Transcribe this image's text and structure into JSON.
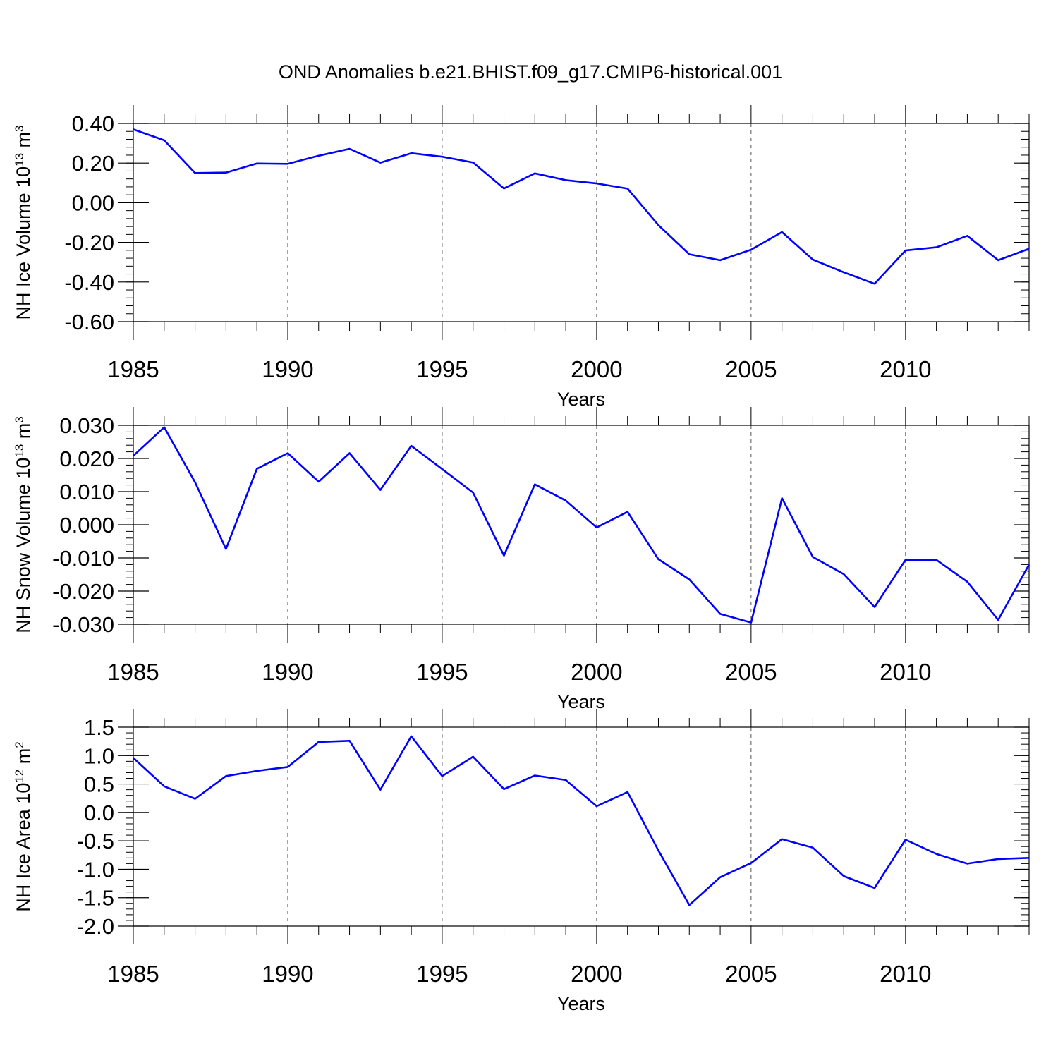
{
  "figure": {
    "title": "OND Anomalies b.e21.BHIST.f09_g17.CMIP6-historical.001",
    "line_color": "#0000ff",
    "axis_color": "#000000",
    "grid_color": "#555555"
  },
  "chart_data": [
    {
      "type": "line",
      "xlabel": "Years",
      "ylabel": {
        "prefix": "NH Ice Volume 10",
        "exponent": "13",
        "unit": " m",
        "unit_exponent": "3"
      },
      "xlim": [
        1985,
        2014
      ],
      "ylim": [
        -0.6,
        0.4
      ],
      "xticks": [
        1985,
        1990,
        1995,
        2000,
        2005,
        2010
      ],
      "xtick_labels": [
        "1985",
        "1990",
        "1995",
        "2000",
        "2005",
        "2010"
      ],
      "yticks": [
        -0.6,
        -0.4,
        -0.2,
        0.0,
        0.2,
        0.4
      ],
      "ytick_labels": [
        "-0.60",
        "-0.40",
        "-0.20",
        "0.00",
        "0.20",
        "0.40"
      ],
      "yminor_step": 0.04,
      "grid": "vertical-dashed",
      "series": [
        {
          "x": [
            1985,
            1986,
            1987,
            1988,
            1989,
            1990,
            1991,
            1992,
            1993,
            1994,
            1995,
            1996,
            1997,
            1998,
            1999,
            2000,
            2001,
            2002,
            2003,
            2004,
            2005,
            2006,
            2007,
            2008,
            2009,
            2010,
            2011,
            2012,
            2013,
            2014
          ],
          "values": [
            0.37,
            0.315,
            0.15,
            0.152,
            0.198,
            0.196,
            0.237,
            0.272,
            0.202,
            0.25,
            0.232,
            0.203,
            0.072,
            0.148,
            0.114,
            0.097,
            0.071,
            -0.113,
            -0.26,
            -0.29,
            -0.237,
            -0.148,
            -0.287,
            -0.351,
            -0.409,
            -0.241,
            -0.225,
            -0.167,
            -0.29,
            -0.232
          ]
        }
      ]
    },
    {
      "type": "line",
      "xlabel": "Years",
      "ylabel": {
        "prefix": "NH Snow Volume 10",
        "exponent": "13",
        "unit": " m",
        "unit_exponent": "3"
      },
      "xlim": [
        1985,
        2014
      ],
      "ylim": [
        -0.03,
        0.03
      ],
      "xticks": [
        1985,
        1990,
        1995,
        2000,
        2005,
        2010
      ],
      "xtick_labels": [
        "1985",
        "1990",
        "1995",
        "2000",
        "2005",
        "2010"
      ],
      "yticks": [
        -0.03,
        -0.02,
        -0.01,
        0.0,
        0.01,
        0.02,
        0.03
      ],
      "ytick_labels": [
        "-0.030",
        "-0.020",
        "-0.010",
        "0.000",
        "0.010",
        "0.020",
        "0.030"
      ],
      "yminor_step": 0.002,
      "grid": "vertical-dashed",
      "series": [
        {
          "x": [
            1985,
            1986,
            1987,
            1988,
            1989,
            1990,
            1991,
            1992,
            1993,
            1994,
            1995,
            1996,
            1997,
            1998,
            1999,
            2000,
            2001,
            2002,
            2003,
            2004,
            2005,
            2006,
            2007,
            2008,
            2009,
            2010,
            2011,
            2012,
            2013,
            2014
          ],
          "values": [
            0.0208,
            0.0294,
            0.0128,
            -0.0073,
            0.0169,
            0.0216,
            0.013,
            0.0216,
            0.0105,
            0.0238,
            0.0168,
            0.0097,
            -0.0093,
            0.0122,
            0.0073,
            -0.0008,
            0.0039,
            -0.0104,
            -0.0165,
            -0.0269,
            -0.0295,
            0.008,
            -0.0097,
            -0.0149,
            -0.0248,
            -0.0106,
            -0.0106,
            -0.0172,
            -0.0287,
            -0.012
          ]
        }
      ]
    },
    {
      "type": "line",
      "xlabel": "Years",
      "ylabel": {
        "prefix": "NH Ice Area 10",
        "exponent": "12",
        "unit": " m",
        "unit_exponent": "2"
      },
      "xlim": [
        1985,
        2014
      ],
      "ylim": [
        -2.0,
        1.5
      ],
      "xticks": [
        1985,
        1990,
        1995,
        2000,
        2005,
        2010
      ],
      "xtick_labels": [
        "1985",
        "1990",
        "1995",
        "2000",
        "2005",
        "2010"
      ],
      "yticks": [
        -2.0,
        -1.5,
        -1.0,
        -0.5,
        0.0,
        0.5,
        1.0,
        1.5
      ],
      "ytick_labels": [
        "-2.0",
        "-1.5",
        "-1.0",
        "-0.5",
        "0.0",
        "0.5",
        "1.0",
        "1.5"
      ],
      "yminor_step": 0.1,
      "grid": "vertical-dashed",
      "series": [
        {
          "x": [
            1985,
            1986,
            1987,
            1988,
            1989,
            1990,
            1991,
            1992,
            1993,
            1994,
            1995,
            1996,
            1997,
            1998,
            1999,
            2000,
            2001,
            2002,
            2003,
            2004,
            2005,
            2006,
            2007,
            2008,
            2009,
            2010,
            2011,
            2012,
            2013,
            2014
          ],
          "values": [
            0.96,
            0.46,
            0.24,
            0.64,
            0.73,
            0.8,
            1.24,
            1.26,
            0.4,
            1.34,
            0.64,
            0.98,
            0.41,
            0.65,
            0.57,
            0.11,
            0.36,
            -0.67,
            -1.63,
            -1.14,
            -0.89,
            -0.47,
            -0.62,
            -1.12,
            -1.33,
            -0.48,
            -0.73,
            -0.9,
            -0.82,
            -0.8
          ]
        }
      ]
    }
  ]
}
